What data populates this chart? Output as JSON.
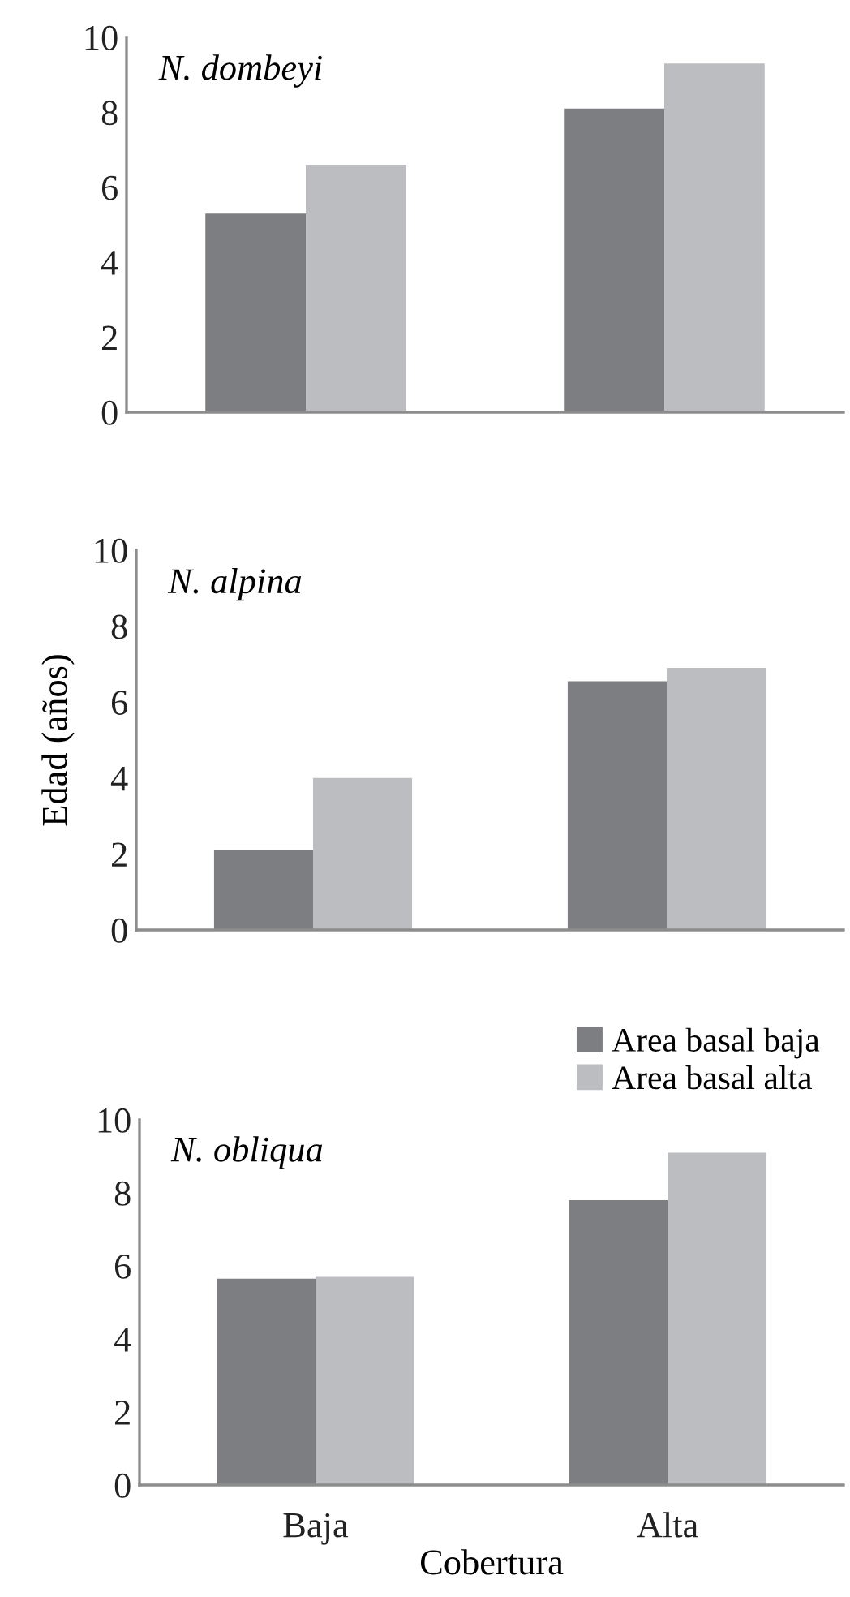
{
  "chart_data": [
    {
      "type": "bar",
      "categories": [
        null,
        null
      ],
      "annotations": [
        "N. dombeyi"
      ],
      "ylim": [
        0,
        10
      ],
      "yticks": [
        0,
        2,
        4,
        6,
        8,
        10
      ],
      "tick_labels": "y",
      "grid": false,
      "legend": false,
      "series": [
        {
          "color": "#7d7e82",
          "values": [
            5.3,
            8.1
          ]
        },
        {
          "color": "#bcbdc1",
          "values": [
            6.6,
            9.3
          ]
        }
      ]
    },
    {
      "type": "bar",
      "categories": [
        null,
        null
      ],
      "ylabel": "Edad (años)",
      "annotations": [
        "N. alpina"
      ],
      "ylim": [
        0,
        10
      ],
      "yticks": [
        0,
        2,
        4,
        6,
        8,
        10
      ],
      "tick_labels": "y",
      "grid": false,
      "legend": false,
      "series": [
        {
          "color": "#7d7e82",
          "values": [
            2.1,
            6.55
          ]
        },
        {
          "color": "#bcbdc1",
          "values": [
            4.0,
            6.9
          ]
        }
      ]
    },
    {
      "type": "bar",
      "categories": [
        "Baja",
        "Alta"
      ],
      "xlabel": "Cobertura",
      "annotations": [
        "N. obliqua"
      ],
      "ylim": [
        0,
        10
      ],
      "yticks": [
        0,
        2,
        4,
        6,
        8,
        10
      ],
      "grid": false,
      "legend": "top right",
      "series": [
        {
          "name": "Area basal baja",
          "color": "#7d7e82",
          "values": [
            5.65,
            7.8
          ]
        },
        {
          "name": "Area basal alta",
          "color": "#bcbdc1",
          "values": [
            5.7,
            9.1
          ]
        }
      ]
    }
  ]
}
